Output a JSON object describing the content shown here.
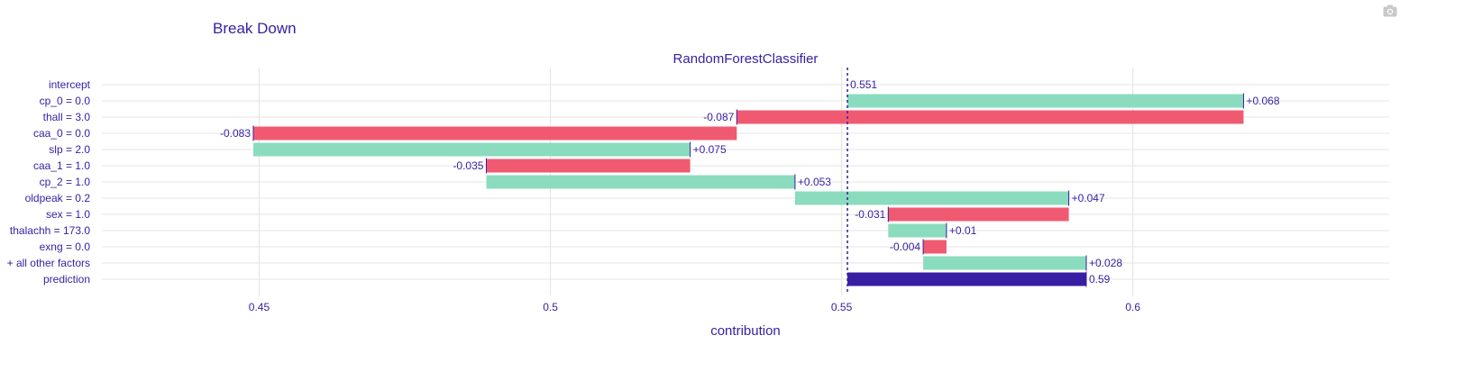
{
  "page_title": "Break Down",
  "toolbar": {
    "camera_icon": "camera-icon"
  },
  "chart_data": {
    "type": "bar",
    "orientation": "horizontal-waterfall",
    "subtitle": "RandomForestClassifier",
    "xlabel": "contribution",
    "ylabel": "",
    "xlim": [
      0.423,
      0.644
    ],
    "x_ticks": [
      0.45,
      0.5,
      0.55,
      0.6
    ],
    "x_tick_labels": [
      "0.45",
      "0.5",
      "0.55",
      "0.6"
    ],
    "baseline": 0.551,
    "grid": true,
    "legend": "none",
    "colors": {
      "positive": "#8bdcbe",
      "negative": "#f05a71",
      "prediction": "#371ea3",
      "text": "#371ea3",
      "grid": "#e6e6e6"
    },
    "rows": [
      {
        "label": "intercept",
        "start": 0.551,
        "end": 0.551,
        "sign": "intercept",
        "value_label": "0.551"
      },
      {
        "label": "cp_0 = 0.0",
        "start": 0.551,
        "end": 0.619,
        "sign": "positive",
        "value_label": "+0.068"
      },
      {
        "label": "thall = 3.0",
        "start": 0.619,
        "end": 0.532,
        "sign": "negative",
        "value_label": "-0.087"
      },
      {
        "label": "caa_0 = 0.0",
        "start": 0.532,
        "end": 0.449,
        "sign": "negative",
        "value_label": "-0.083"
      },
      {
        "label": "slp = 2.0",
        "start": 0.449,
        "end": 0.524,
        "sign": "positive",
        "value_label": "+0.075"
      },
      {
        "label": "caa_1 = 1.0",
        "start": 0.524,
        "end": 0.489,
        "sign": "negative",
        "value_label": "-0.035"
      },
      {
        "label": "cp_2 = 1.0",
        "start": 0.489,
        "end": 0.542,
        "sign": "positive",
        "value_label": "+0.053"
      },
      {
        "label": "oldpeak = 0.2",
        "start": 0.542,
        "end": 0.589,
        "sign": "positive",
        "value_label": "+0.047"
      },
      {
        "label": "sex = 1.0",
        "start": 0.589,
        "end": 0.558,
        "sign": "negative",
        "value_label": "-0.031"
      },
      {
        "label": "thalachh = 173.0",
        "start": 0.558,
        "end": 0.568,
        "sign": "positive",
        "value_label": "+0.01"
      },
      {
        "label": "exng = 0.0",
        "start": 0.568,
        "end": 0.564,
        "sign": "negative",
        "value_label": "-0.004"
      },
      {
        "label": "+ all other factors",
        "start": 0.564,
        "end": 0.592,
        "sign": "positive",
        "value_label": "+0.028"
      },
      {
        "label": "prediction",
        "start": 0.551,
        "end": 0.592,
        "sign": "prediction",
        "value_label": "0.59"
      }
    ]
  }
}
